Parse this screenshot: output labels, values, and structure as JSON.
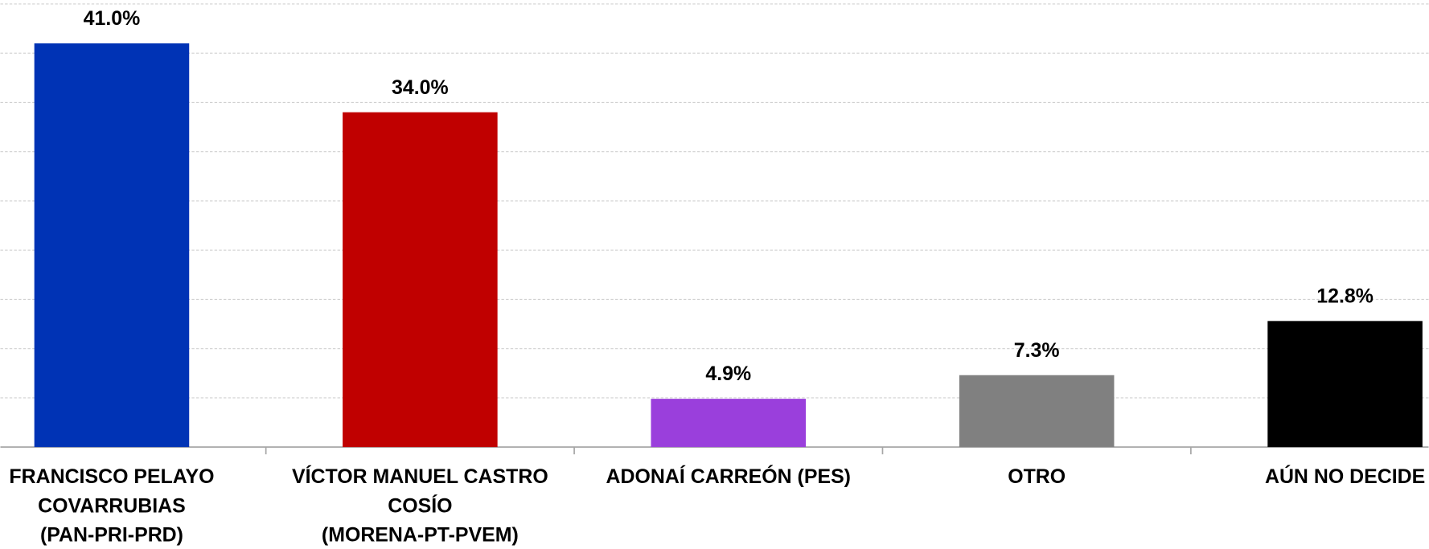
{
  "chart_data": {
    "type": "bar",
    "categories": [
      [
        "FRANCISCO PELAYO",
        "COVARRUBIAS",
        "(PAN-PRI-PRD)"
      ],
      [
        "VÍCTOR MANUEL CASTRO",
        "COSÍO",
        "(MORENA-PT-PVEM)"
      ],
      [
        "ADONAÍ CARREÓN (PES)"
      ],
      [
        "OTRO"
      ],
      [
        "AÚN NO DECIDE"
      ]
    ],
    "values": [
      41.0,
      34.0,
      4.9,
      7.3,
      12.8
    ],
    "value_labels": [
      "41.0%",
      "34.0%",
      "4.9%",
      "7.3%",
      "12.8%"
    ],
    "colors": [
      "#0033b5",
      "#c00000",
      "#9a3fdc",
      "#808080",
      "#000000"
    ],
    "ylim": [
      0,
      45.4
    ],
    "yticks": [
      0,
      5,
      10,
      15,
      20,
      25,
      30,
      35,
      40,
      45
    ],
    "grid": true,
    "tick_labels": false
  }
}
